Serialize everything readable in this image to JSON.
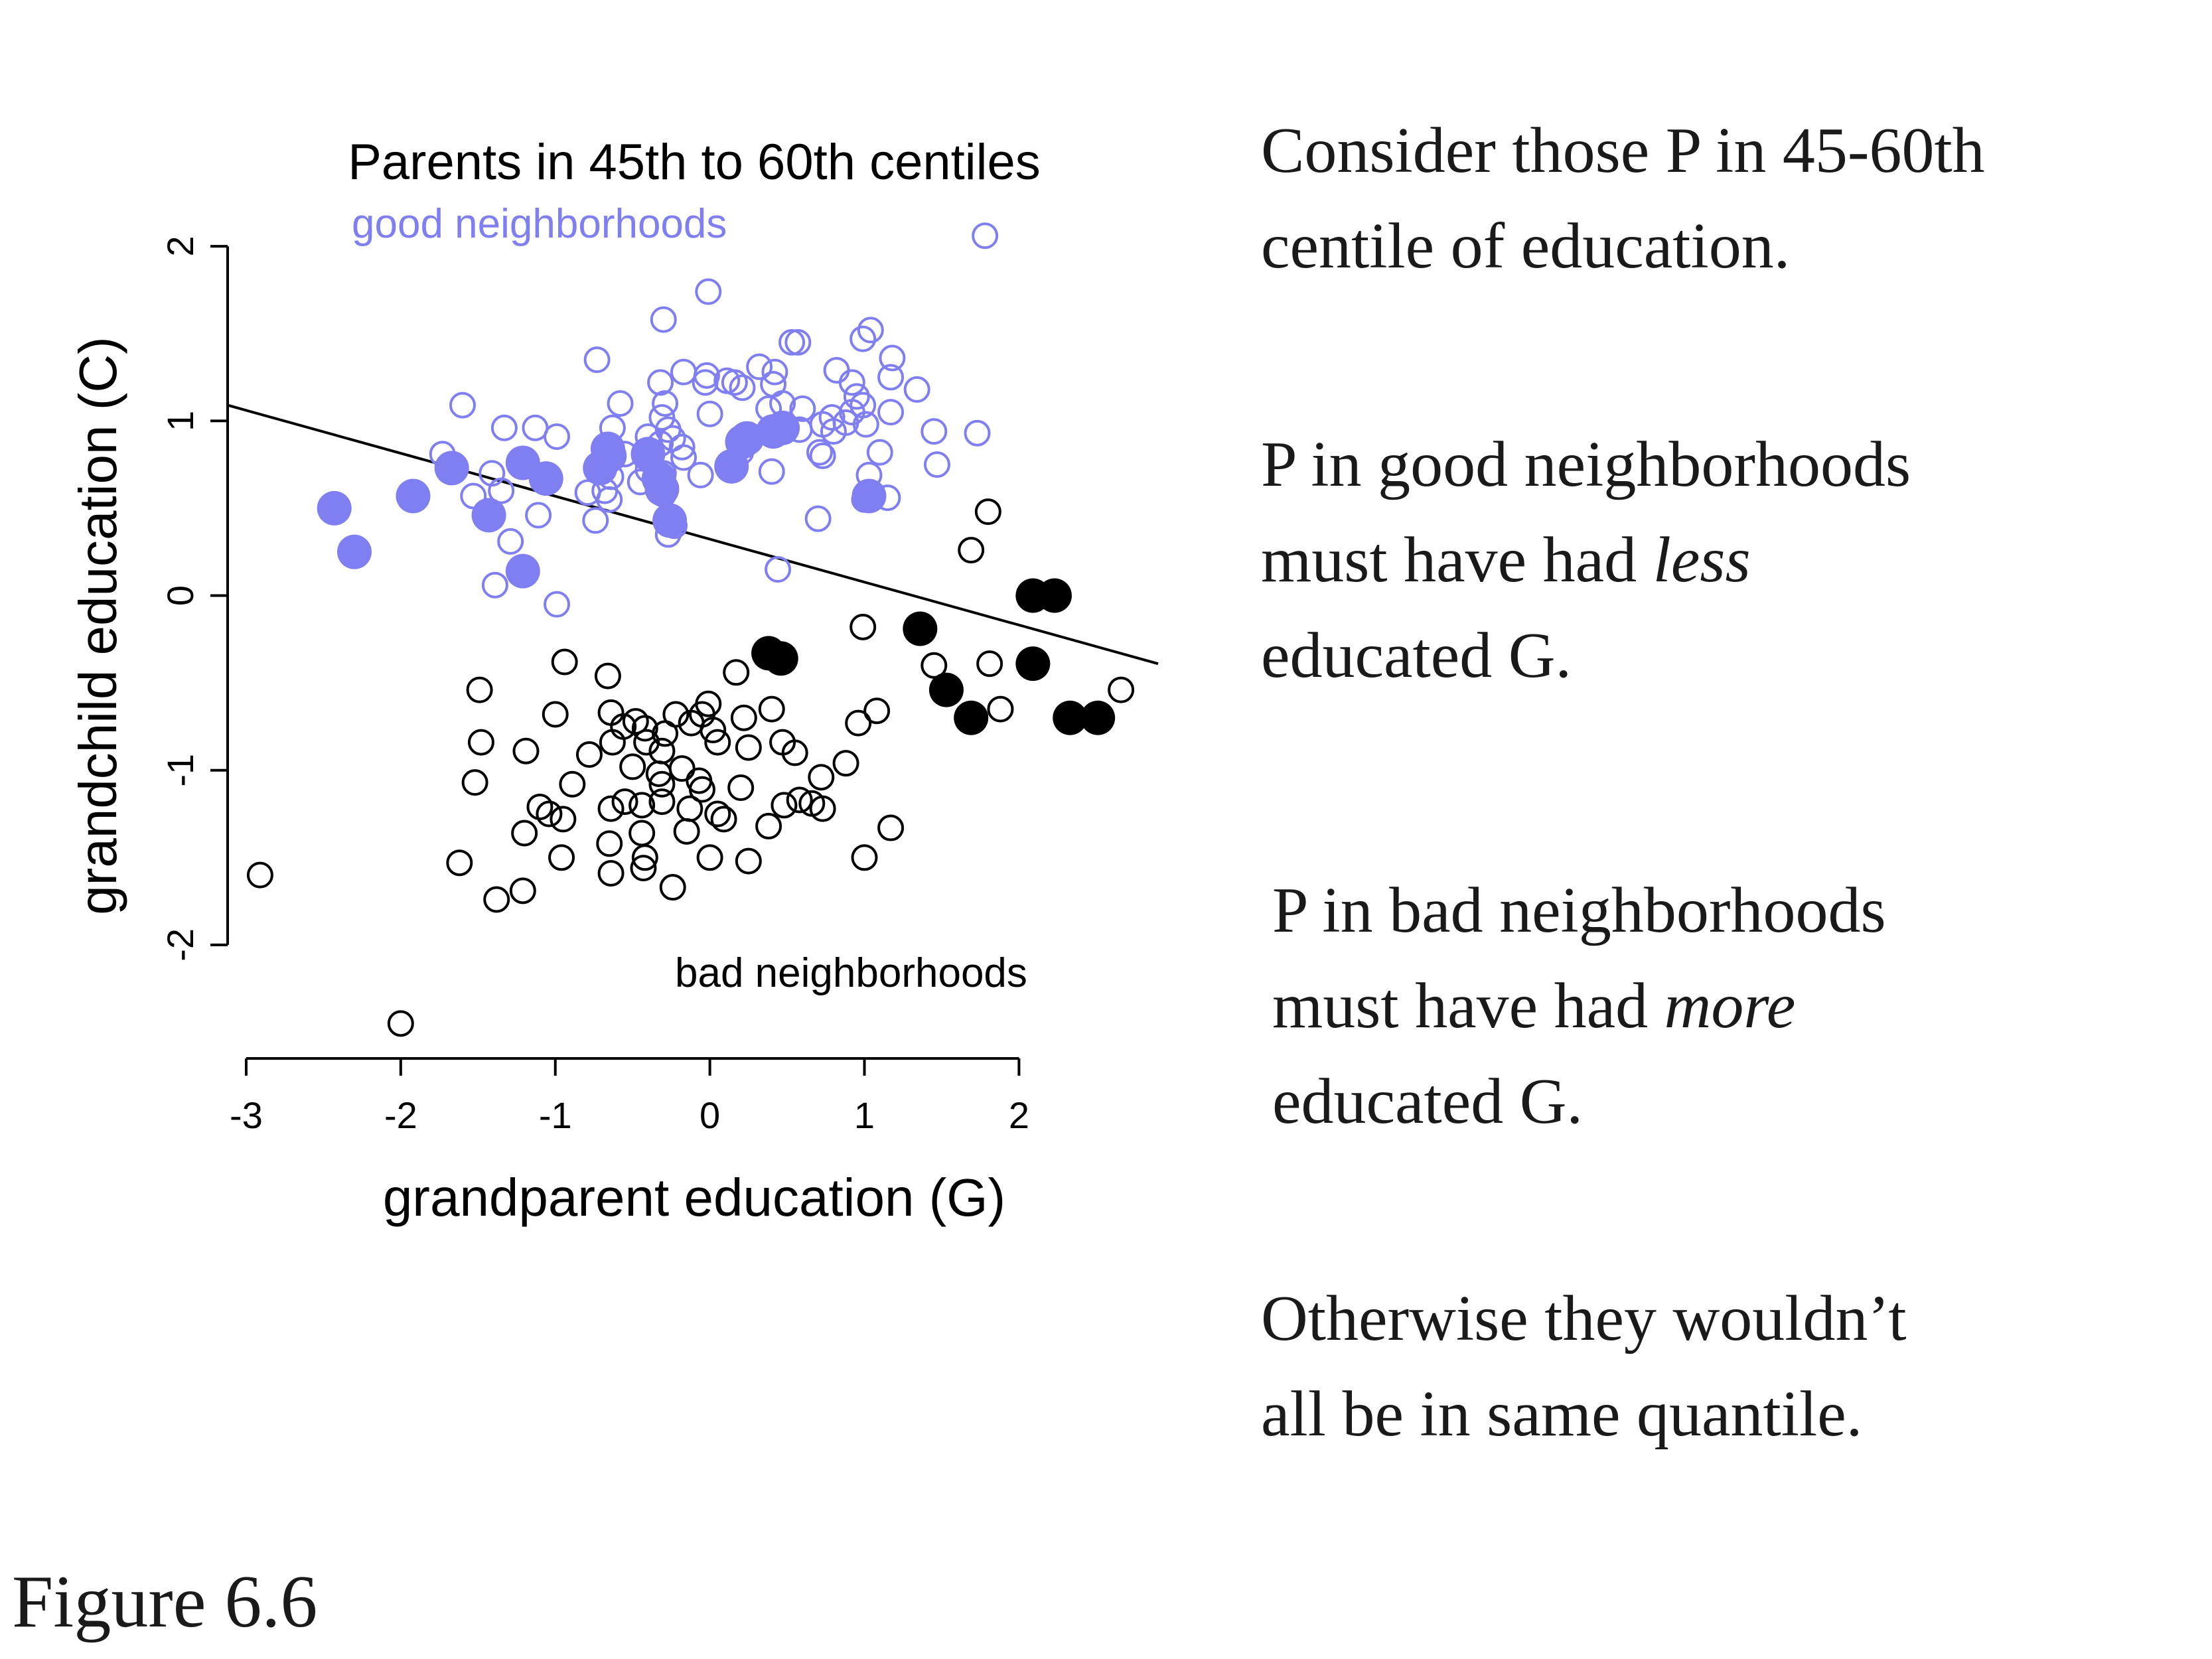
{
  "chart_data": {
    "type": "scatter",
    "title": "Parents in 45th to 60th centiles",
    "xlabel": "grandparent education (G)",
    "ylabel": "grandchild education (C)",
    "xlim": [
      -3.12,
      2.9
    ],
    "ylim": [
      -2.65,
      2.27
    ],
    "xticks": [
      -3,
      -2,
      -1,
      0,
      1,
      2
    ],
    "yticks": [
      -2,
      -1,
      0,
      1,
      2
    ],
    "grid": false,
    "annotations": {
      "good": "good neighborhoods",
      "bad": "bad neighborhoods"
    },
    "colors": {
      "good": "#7f7ff2",
      "bad": "#000000",
      "line": "#000000"
    },
    "regression_line": {
      "x": [
        -3.12,
        2.9
      ],
      "y": [
        1.09,
        -0.39
      ]
    },
    "series": [
      {
        "group": "good",
        "marker": "open",
        "points": [
          [
            1.78,
            2.06
          ],
          [
            -0.3,
            1.58
          ],
          [
            -0.01,
            1.74
          ],
          [
            1.04,
            1.52
          ],
          [
            0.99,
            1.47
          ],
          [
            0.53,
            1.45
          ],
          [
            0.57,
            1.45
          ],
          [
            -0.73,
            1.35
          ],
          [
            1.18,
            1.36
          ],
          [
            0.32,
            1.31
          ],
          [
            -0.17,
            1.28
          ],
          [
            0.42,
            1.28
          ],
          [
            -0.02,
            1.26
          ],
          [
            0.82,
            1.29
          ],
          [
            -0.32,
            1.22
          ],
          [
            -0.03,
            1.22
          ],
          [
            0.11,
            1.23
          ],
          [
            0.16,
            1.22
          ],
          [
            0.21,
            1.19
          ],
          [
            0.41,
            1.21
          ],
          [
            0.92,
            1.22
          ],
          [
            1.17,
            1.25
          ],
          [
            1.34,
            1.18
          ],
          [
            0.95,
            1.14
          ],
          [
            -0.58,
            1.1
          ],
          [
            -0.29,
            1.1
          ],
          [
            0.47,
            1.1
          ],
          [
            0.99,
            1.09
          ],
          [
            0.38,
            1.07
          ],
          [
            0.6,
            1.07
          ],
          [
            0.92,
            1.05
          ],
          [
            1.17,
            1.05
          ],
          [
            -0.31,
            1.02
          ],
          [
            0.0,
            1.04
          ],
          [
            0.79,
            1.02
          ],
          [
            -1.6,
            1.09
          ],
          [
            1.01,
            0.98
          ],
          [
            0.88,
            0.99
          ],
          [
            0.73,
            0.98
          ],
          [
            -1.33,
            0.96
          ],
          [
            -1.13,
            0.96
          ],
          [
            -0.63,
            0.96
          ],
          [
            -0.27,
            0.95
          ],
          [
            -0.24,
            0.9
          ],
          [
            0.58,
            0.95
          ],
          [
            0.8,
            0.94
          ],
          [
            1.45,
            0.94
          ],
          [
            1.73,
            0.93
          ],
          [
            -0.99,
            0.91
          ],
          [
            -0.4,
            0.91
          ],
          [
            -0.32,
            0.87
          ],
          [
            -0.18,
            0.85
          ],
          [
            0.71,
            0.82
          ],
          [
            1.1,
            0.82
          ],
          [
            -1.73,
            0.81
          ],
          [
            -0.55,
            0.81
          ],
          [
            -0.17,
            0.79
          ],
          [
            0.73,
            0.8
          ],
          [
            1.47,
            0.75
          ],
          [
            -1.41,
            0.7
          ],
          [
            -0.3,
            0.7
          ],
          [
            0.4,
            0.71
          ],
          [
            -0.06,
            0.69
          ],
          [
            -0.64,
            0.68
          ],
          [
            1.03,
            0.69
          ],
          [
            -0.79,
            0.59
          ],
          [
            -0.68,
            0.6
          ],
          [
            -0.3,
            0.58
          ],
          [
            1.15,
            0.56
          ],
          [
            -1.53,
            0.57
          ],
          [
            -1.11,
            0.46
          ],
          [
            0.7,
            0.44
          ],
          [
            -0.74,
            0.43
          ],
          [
            -0.23,
            0.4
          ],
          [
            -0.27,
            0.35
          ],
          [
            -1.29,
            0.31
          ],
          [
            0.44,
            0.15
          ],
          [
            -1.39,
            0.06
          ],
          [
            -0.99,
            -0.05
          ],
          [
            1.0,
            0.55
          ],
          [
            -1.35,
            0.6
          ],
          [
            -0.65,
            0.55
          ],
          [
            -0.45,
            0.65
          ],
          [
            -0.4,
            0.72
          ],
          [
            0.2,
            0.82
          ]
        ]
      },
      {
        "group": "good",
        "marker": "filled",
        "points": [
          [
            -2.43,
            0.5
          ],
          [
            -2.3,
            0.25
          ],
          [
            -1.92,
            0.57
          ],
          [
            -1.67,
            0.73
          ],
          [
            -1.43,
            0.46
          ],
          [
            -1.21,
            0.76
          ],
          [
            -1.06,
            0.67
          ],
          [
            -1.21,
            0.14
          ],
          [
            -0.71,
            0.73
          ],
          [
            -0.66,
            0.84
          ],
          [
            -0.65,
            0.8
          ],
          [
            -0.4,
            0.81
          ],
          [
            -0.33,
            0.67
          ],
          [
            -0.31,
            0.61
          ],
          [
            -0.26,
            0.43
          ],
          [
            0.14,
            0.74
          ],
          [
            0.21,
            0.88
          ],
          [
            0.24,
            0.9
          ],
          [
            0.41,
            0.94
          ],
          [
            0.47,
            0.96
          ],
          [
            1.03,
            0.57
          ]
        ]
      },
      {
        "group": "bad",
        "marker": "open",
        "points": [
          [
            1.8,
            0.48
          ],
          [
            1.69,
            0.26
          ],
          [
            0.99,
            -0.18
          ],
          [
            -0.94,
            -0.38
          ],
          [
            -0.66,
            -0.46
          ],
          [
            0.17,
            -0.44
          ],
          [
            1.45,
            -0.4
          ],
          [
            1.81,
            -0.39
          ],
          [
            -1.49,
            -0.54
          ],
          [
            -1.0,
            -0.68
          ],
          [
            -0.64,
            -0.67
          ],
          [
            -0.48,
            -0.72
          ],
          [
            -0.22,
            -0.68
          ],
          [
            -0.05,
            -0.68
          ],
          [
            -0.01,
            -0.62
          ],
          [
            0.4,
            -0.65
          ],
          [
            1.08,
            -0.66
          ],
          [
            1.88,
            -0.65
          ],
          [
            2.66,
            -0.54
          ],
          [
            -0.56,
            -0.75
          ],
          [
            -0.42,
            -0.76
          ],
          [
            -0.12,
            -0.73
          ],
          [
            0.22,
            -0.7
          ],
          [
            0.96,
            -0.73
          ],
          [
            -1.48,
            -0.84
          ],
          [
            -1.19,
            -0.89
          ],
          [
            -0.63,
            -0.84
          ],
          [
            -0.41,
            -0.84
          ],
          [
            -0.29,
            -0.79
          ],
          [
            0.05,
            -0.84
          ],
          [
            0.47,
            -0.84
          ],
          [
            0.55,
            -0.9
          ],
          [
            -0.78,
            -0.91
          ],
          [
            -0.31,
            -0.89
          ],
          [
            0.25,
            -0.87
          ],
          [
            0.88,
            -0.96
          ],
          [
            -0.33,
            -1.02
          ],
          [
            -0.18,
            -0.99
          ],
          [
            -0.07,
            -1.06
          ],
          [
            -0.89,
            -1.08
          ],
          [
            -1.52,
            -1.07
          ],
          [
            -0.31,
            -1.08
          ],
          [
            -0.05,
            -1.11
          ],
          [
            0.2,
            -1.1
          ],
          [
            0.72,
            -1.04
          ],
          [
            -1.1,
            -1.21
          ],
          [
            -1.04,
            -1.25
          ],
          [
            -0.95,
            -1.28
          ],
          [
            -0.64,
            -1.22
          ],
          [
            -0.55,
            -1.18
          ],
          [
            -0.44,
            -1.2
          ],
          [
            -0.31,
            -1.18
          ],
          [
            -0.13,
            -1.22
          ],
          [
            0.05,
            -1.25
          ],
          [
            0.48,
            -1.2
          ],
          [
            0.58,
            -1.17
          ],
          [
            0.66,
            -1.19
          ],
          [
            0.73,
            -1.22
          ],
          [
            -1.2,
            -1.36
          ],
          [
            -0.44,
            -1.36
          ],
          [
            -0.15,
            -1.35
          ],
          [
            0.38,
            -1.32
          ],
          [
            1.17,
            -1.33
          ],
          [
            -0.65,
            -1.42
          ],
          [
            -0.42,
            -1.5
          ],
          [
            -0.96,
            -1.5
          ],
          [
            0.0,
            -1.5
          ],
          [
            0.25,
            -1.52
          ],
          [
            1.0,
            -1.5
          ],
          [
            -1.62,
            -1.53
          ],
          [
            -0.43,
            -1.56
          ],
          [
            -0.64,
            -1.59
          ],
          [
            -0.24,
            -1.67
          ],
          [
            -1.21,
            -1.69
          ],
          [
            -1.38,
            -1.74
          ],
          [
            -2.91,
            -1.6
          ],
          [
            -2.0,
            -2.45
          ],
          [
            0.02,
            -0.77
          ],
          [
            0.09,
            -1.28
          ],
          [
            -0.5,
            -0.98
          ]
        ]
      },
      {
        "group": "bad",
        "marker": "filled",
        "points": [
          [
            2.09,
            0.0
          ],
          [
            2.23,
            0.0
          ],
          [
            1.36,
            -0.19
          ],
          [
            0.38,
            -0.33
          ],
          [
            0.46,
            -0.36
          ],
          [
            2.09,
            -0.39
          ],
          [
            1.53,
            -0.54
          ],
          [
            1.69,
            -0.7
          ],
          [
            2.33,
            -0.7
          ],
          [
            2.51,
            -0.7
          ]
        ]
      }
    ]
  },
  "side_text": {
    "p1": [
      "Consider those P in 45-60th",
      "centile of education."
    ],
    "p2": {
      "l1": "P in good neighborhoods",
      "l2_pre": "must have had ",
      "l2_em": "less",
      "l3": "educated G."
    },
    "p3": {
      "l1": "P in bad neighborhoods",
      "l2_pre": "must have had ",
      "l2_em": "more",
      "l3": "educated G."
    },
    "p4": [
      "Otherwise they wouldn’t",
      "all be in same quantile."
    ]
  },
  "figure_label": "Figure 6.6"
}
